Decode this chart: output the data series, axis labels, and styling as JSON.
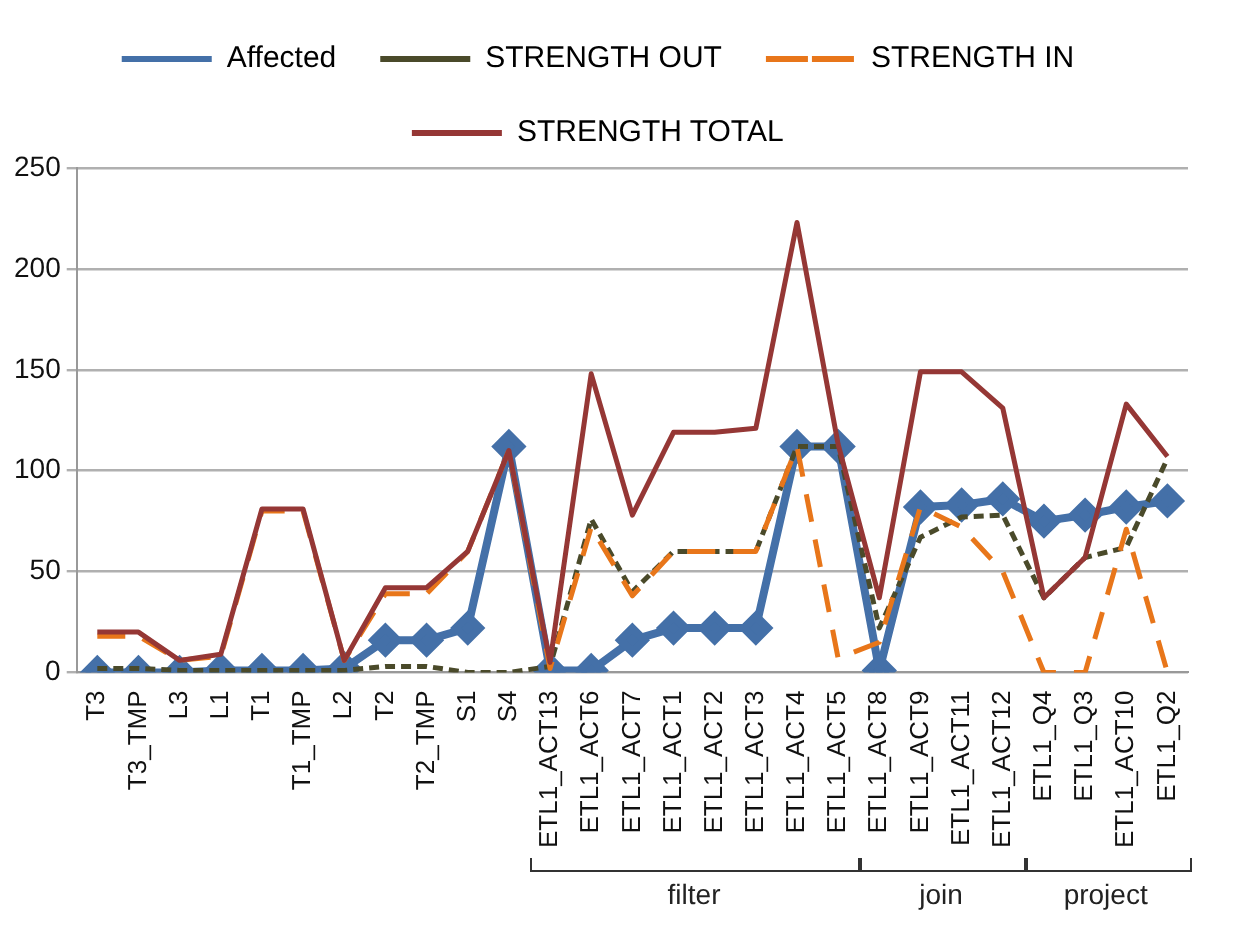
{
  "chart_data": {
    "type": "line",
    "categories": [
      "T3",
      "T3_TMP",
      "L3",
      "L1",
      "T1",
      "T1_TMP",
      "L2",
      "T2",
      "T2_TMP",
      "S1",
      "S4",
      "ETL1_ACT13",
      "ETL1_ACT6",
      "ETL1_ACT7",
      "ETL1_ACT1",
      "ETL1_ACT2",
      "ETL1_ACT3",
      "ETL1_ACT4",
      "ETL1_ACT5",
      "ETL1_ACT8",
      "ETL1_ACT9",
      "ETL1_ACT11",
      "ETL1_ACT12",
      "ETL1_Q4",
      "ETL1_Q3",
      "ETL1_ACT10",
      "ETL1_Q2"
    ],
    "series": [
      {
        "name": "Affected",
        "color": "#4470a8",
        "marker": "diamond",
        "line_style": "solid",
        "values": [
          0,
          0,
          0,
          1,
          1,
          1,
          2,
          16,
          16,
          22,
          112,
          1,
          1,
          16,
          22,
          22,
          22,
          112,
          112,
          1,
          82,
          83,
          86,
          75,
          78,
          82,
          85
        ]
      },
      {
        "name": "STRENGTH OUT",
        "color": "#4a4a2a",
        "marker": "none",
        "line_style": "dotted",
        "values": [
          2,
          2,
          1,
          1,
          1,
          1,
          1,
          3,
          3,
          0,
          0,
          3,
          76,
          40,
          60,
          60,
          60,
          112,
          112,
          22,
          67,
          77,
          78,
          37,
          57,
          62,
          106
        ]
      },
      {
        "name": "STRENGTH IN",
        "color": "#e8761a",
        "marker": "none",
        "line_style": "dashed",
        "values": [
          18,
          18,
          6,
          8,
          80,
          80,
          6,
          39,
          39,
          60,
          110,
          2,
          72,
          38,
          60,
          60,
          60,
          112,
          7,
          15,
          82,
          72,
          50,
          0,
          0,
          71,
          0
        ]
      },
      {
        "name": "STRENGTH TOTAL",
        "color": "#953735",
        "marker": "none",
        "line_style": "solid",
        "values": [
          20,
          20,
          6,
          9,
          81,
          81,
          6,
          42,
          42,
          60,
          110,
          5,
          148,
          78,
          119,
          119,
          121,
          223,
          113,
          37,
          149,
          149,
          131,
          37,
          57,
          133,
          107
        ]
      }
    ],
    "ylim": [
      0,
      250
    ],
    "yticks": [
      0,
      50,
      100,
      150,
      200,
      250
    ],
    "grid": "y",
    "legend": "top",
    "annotations": [
      "filter",
      "join",
      "project"
    ]
  }
}
